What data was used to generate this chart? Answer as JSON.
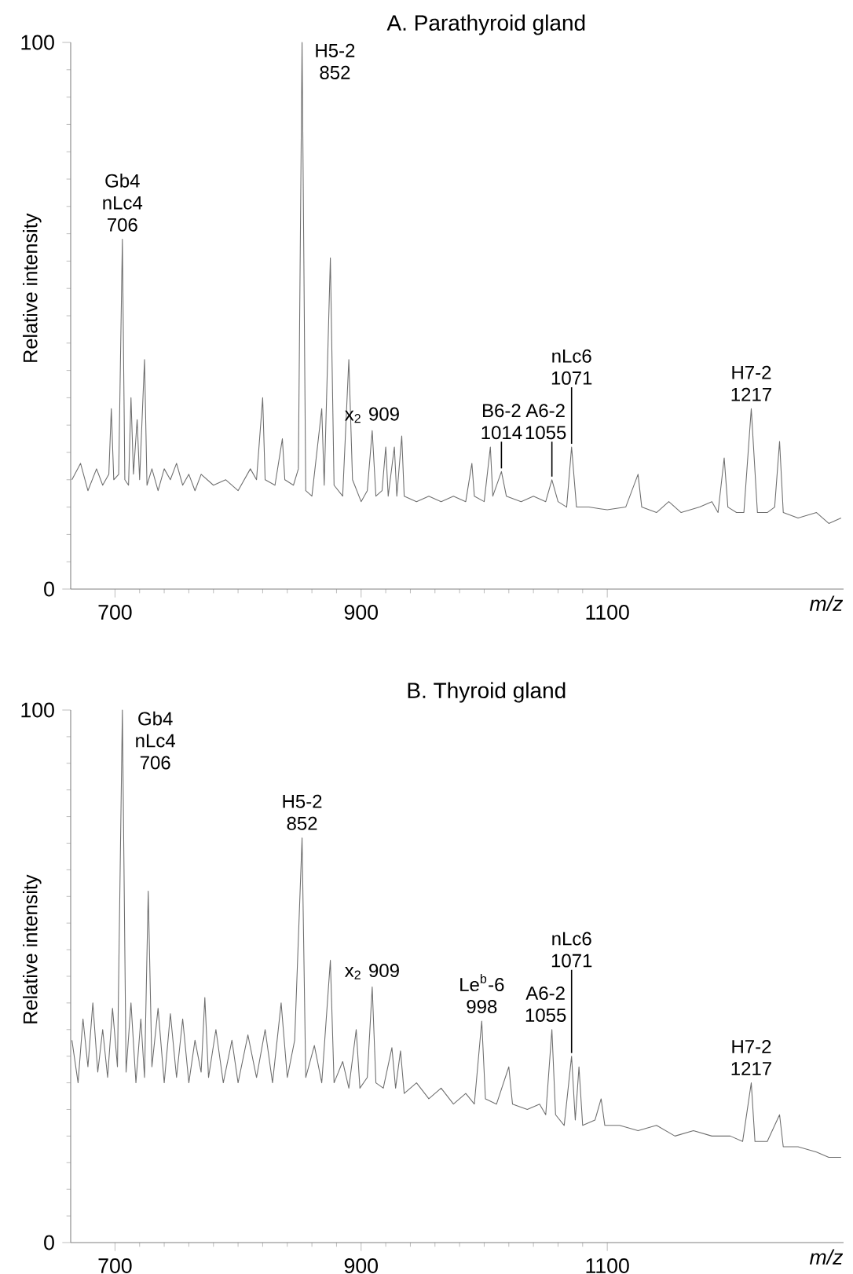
{
  "chart_data": [
    {
      "type": "line",
      "title": "A. Parathyroid gland",
      "xlabel": "m/z",
      "ylabel": "Relative intensity",
      "color": "#6e6e6e",
      "x": [
        665,
        672,
        678,
        685,
        690,
        695,
        697,
        699,
        703,
        706,
        708,
        711,
        713,
        715,
        718,
        720,
        724,
        726,
        730,
        735,
        740,
        745,
        750,
        755,
        760,
        765,
        770,
        780,
        790,
        800,
        810,
        815,
        820,
        822,
        830,
        836,
        838,
        845,
        849,
        852,
        855,
        860,
        868,
        870,
        875,
        878,
        885,
        890,
        893,
        900,
        905,
        909,
        912,
        917,
        920,
        922,
        927,
        929,
        933,
        935,
        945,
        955,
        965,
        975,
        985,
        990,
        992,
        1000,
        1005,
        1007,
        1014,
        1018,
        1030,
        1040,
        1050,
        1055,
        1060,
        1067,
        1071,
        1075,
        1085,
        1100,
        1115,
        1125,
        1128,
        1140,
        1150,
        1160,
        1175,
        1185,
        1190,
        1195,
        1198,
        1205,
        1211,
        1217,
        1222,
        1230,
        1236,
        1240,
        1243,
        1255,
        1270,
        1280,
        1290
      ],
      "values": [
        20,
        23,
        18,
        22,
        19,
        21,
        33,
        20,
        21,
        64,
        20,
        19,
        35,
        21,
        31,
        20,
        42,
        19,
        22,
        18,
        22,
        20,
        23,
        19,
        21,
        18,
        21,
        19,
        20,
        18,
        22,
        20,
        35,
        20,
        19,
        27.5,
        20,
        19,
        22,
        100,
        18,
        17,
        33,
        19,
        60.6,
        19,
        17,
        42,
        20,
        16,
        18,
        29,
        17,
        18,
        26,
        17,
        26,
        17,
        28,
        17,
        16,
        17,
        16,
        17,
        16,
        23,
        17,
        16,
        26,
        17,
        21.5,
        17,
        16,
        17,
        16,
        20,
        16,
        15,
        26,
        15,
        15,
        14.5,
        15,
        21,
        15,
        14,
        16,
        14,
        15,
        16,
        14,
        24,
        15,
        14,
        14,
        33,
        14,
        14,
        15,
        27,
        14,
        13,
        14,
        12,
        13
      ],
      "xlim": [
        664,
        1292
      ],
      "ylim": [
        0,
        100
      ],
      "xticks": [
        700,
        900,
        1100
      ],
      "yticks": [
        0,
        100
      ],
      "annotations": [
        {
          "text": "Gb4 nLc4 706",
          "x": 706,
          "y": 64
        },
        {
          "text": "H5-2 852",
          "x": 852,
          "y": 100
        },
        {
          "text": "x$_{2}$ 909",
          "x": 909,
          "y": 29
        },
        {
          "text": "B6-2 1014",
          "x": 1014,
          "y": 21.5
        },
        {
          "text": "A6-2 1055",
          "x": 1055,
          "y": 20
        },
        {
          "text": "nLc6 1071",
          "x": 1071,
          "y": 26
        },
        {
          "text": "H7-2 1217",
          "x": 1217,
          "y": 33
        }
      ]
    },
    {
      "type": "line",
      "title": "B. Thyroid gland",
      "xlabel": "m/z",
      "ylabel": "Relative intensity",
      "color": "#6e6e6e",
      "x": [
        665,
        670,
        674,
        678,
        682,
        686,
        690,
        694,
        698,
        702,
        706,
        709,
        713,
        717,
        721,
        724,
        727,
        730,
        735,
        740,
        745,
        750,
        755,
        760,
        765,
        770,
        773,
        776,
        782,
        788,
        795,
        800,
        808,
        815,
        822,
        828,
        835,
        840,
        846,
        852,
        855,
        862,
        868,
        875,
        878,
        885,
        890,
        896,
        899,
        905,
        909,
        912,
        918,
        925,
        928,
        932,
        935,
        945,
        955,
        965,
        975,
        985,
        992,
        998,
        1001,
        1010,
        1020,
        1023,
        1035,
        1045,
        1050,
        1055,
        1058,
        1065,
        1071,
        1074,
        1077,
        1080,
        1090,
        1095,
        1098,
        1110,
        1125,
        1140,
        1155,
        1170,
        1185,
        1200,
        1210,
        1217,
        1220,
        1230,
        1240,
        1243,
        1255,
        1270,
        1280,
        1290
      ],
      "values": [
        38,
        30,
        42,
        33,
        45,
        32,
        40,
        31,
        44,
        33,
        100,
        32,
        45,
        30,
        42,
        31,
        66,
        33,
        44,
        30,
        43,
        31,
        42,
        30,
        38,
        32,
        46,
        31,
        40,
        30,
        38,
        30,
        39,
        31,
        40,
        30,
        45,
        31,
        38,
        76,
        31,
        37,
        30,
        53,
        30,
        34,
        29,
        40,
        29,
        31,
        48,
        30,
        29,
        36.6,
        29,
        36,
        28,
        30,
        27,
        29,
        26,
        28,
        26,
        41.6,
        27,
        26,
        33,
        26,
        25,
        26,
        24,
        40,
        24,
        22,
        35,
        23,
        33,
        22,
        23,
        27,
        22,
        22,
        21,
        22,
        20,
        21,
        20,
        20,
        19,
        30,
        19,
        19,
        24,
        18,
        18,
        17,
        16,
        16
      ],
      "xlim": [
        664,
        1292
      ],
      "ylim": [
        0,
        100
      ],
      "xticks": [
        700,
        900,
        1100
      ],
      "yticks": [
        0,
        100
      ],
      "annotations": [
        {
          "text": "Gb4 nLc4 706",
          "x": 706,
          "y": 100
        },
        {
          "text": "H5-2 852",
          "x": 852,
          "y": 76
        },
        {
          "text": "x$_{2}$ 909",
          "x": 909,
          "y": 48
        },
        {
          "text": "Le$^{b}$-6 998",
          "x": 998,
          "y": 41.6
        },
        {
          "text": "A6-2 1055",
          "x": 1055,
          "y": 40
        },
        {
          "text": "nLc6 1071",
          "x": 1071,
          "y": 35
        },
        {
          "text": "H7-2 1217",
          "x": 1217,
          "y": 30
        }
      ]
    }
  ]
}
